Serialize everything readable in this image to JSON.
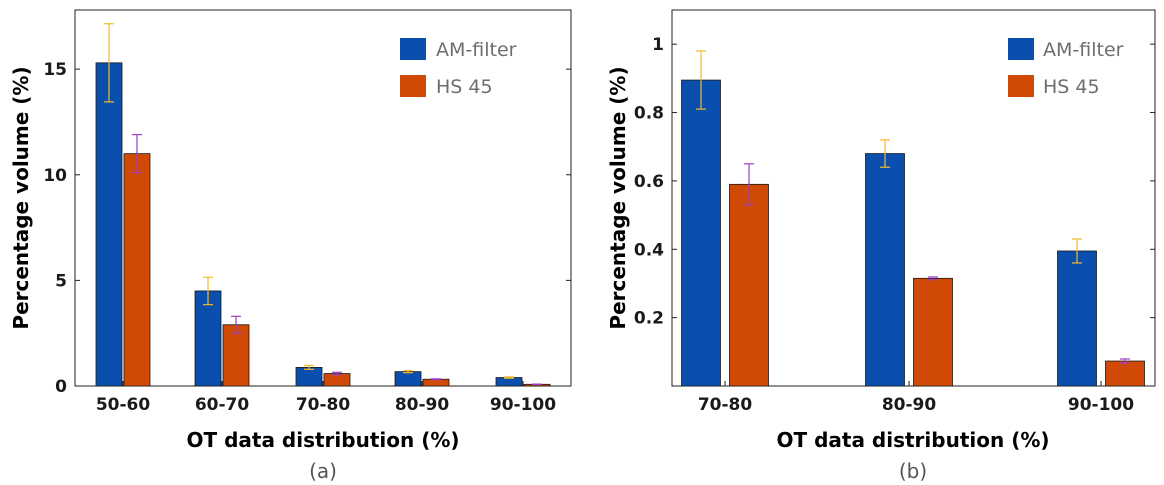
{
  "colors": {
    "am_filter": "#0a4fad",
    "hs45": "#d14a05",
    "am_error": "#f5b82e",
    "hs_error": "#9b3fc2"
  },
  "chart_data": [
    {
      "type": "bar",
      "caption": "(a)",
      "categories": [
        "50-60",
        "60-70",
        "70-80",
        "80-90",
        "90-100"
      ],
      "series": [
        {
          "name": "AM-filter",
          "values": [
            15.3,
            4.5,
            0.88,
            0.68,
            0.4
          ],
          "error": [
            1.85,
            0.65,
            0.09,
            0.05,
            0.03
          ]
        },
        {
          "name": "HS 45",
          "values": [
            11.0,
            2.9,
            0.59,
            0.32,
            0.08
          ],
          "error": [
            0.9,
            0.4,
            0.06,
            0.02,
            0.01
          ]
        }
      ],
      "xlabel": "OT data distribution (%)",
      "ylabel": "Percentage volume (%)",
      "ylim": [
        0,
        17.8
      ],
      "yticks": [
        0,
        5,
        10,
        15
      ],
      "grid": false,
      "legend": "top-right"
    },
    {
      "type": "bar",
      "caption": "(b)",
      "categories": [
        "70-80",
        "80-90",
        "90-100"
      ],
      "series": [
        {
          "name": "AM-filter",
          "values": [
            0.895,
            0.68,
            0.395
          ],
          "error": [
            0.085,
            0.04,
            0.035
          ]
        },
        {
          "name": "HS 45",
          "values": [
            0.59,
            0.315,
            0.073
          ],
          "error": [
            0.06,
            0.004,
            0.006
          ]
        }
      ],
      "xlabel": "OT data distribution (%)",
      "ylabel": "Percentage volume (%)",
      "ylim": [
        0,
        1.1
      ],
      "yticks": [
        0.2,
        0.4,
        0.6,
        0.8,
        1
      ],
      "grid": false,
      "legend": "top-right"
    }
  ]
}
